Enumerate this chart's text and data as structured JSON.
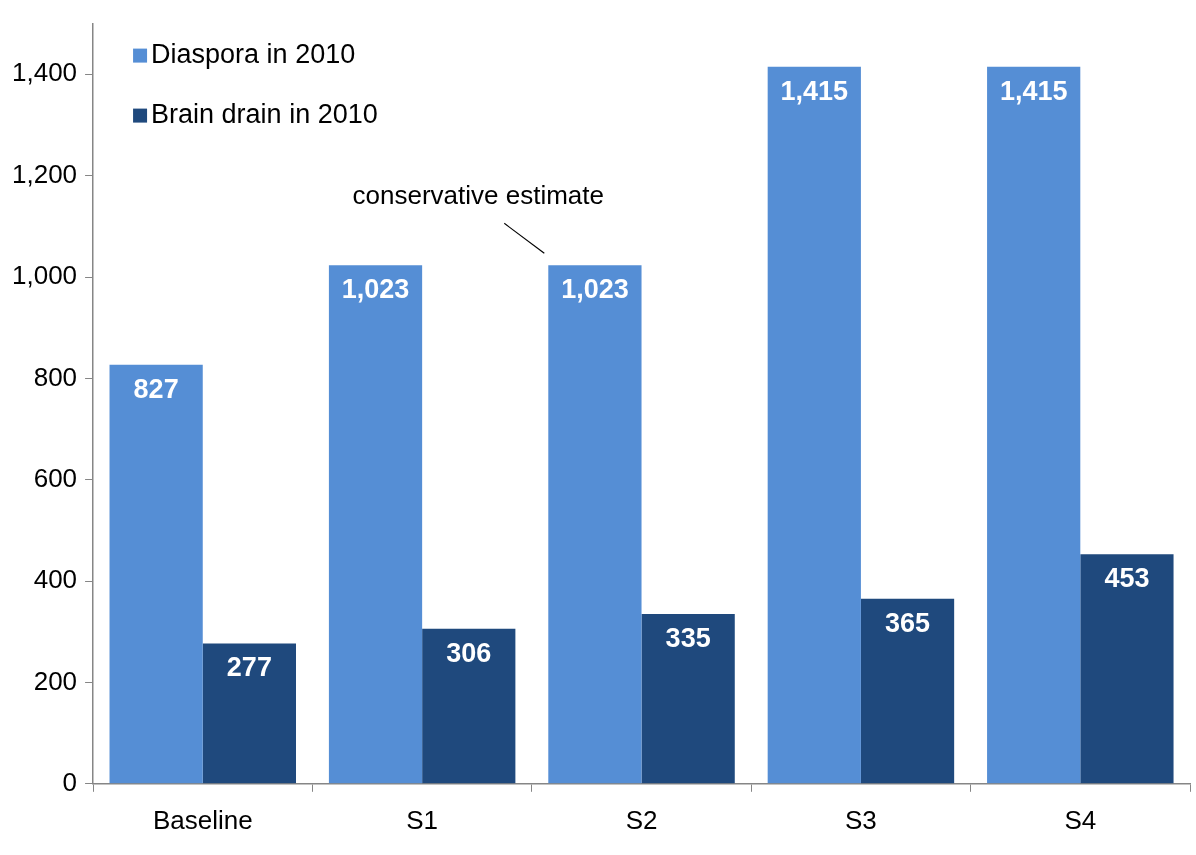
{
  "chart_data": {
    "type": "bar",
    "categories": [
      "Baseline",
      "S1",
      "S2",
      "S3",
      "S4"
    ],
    "series": [
      {
        "name": "Diaspora in 2010",
        "color": "#558ed5",
        "values": [
          827,
          1023,
          1023,
          1415,
          1415
        ],
        "value_labels": [
          "827",
          "1,023",
          "1,023",
          "1,415",
          "1,415"
        ]
      },
      {
        "name": "Brain drain in 2010",
        "color": "#1f497d",
        "values": [
          277,
          306,
          335,
          365,
          453
        ],
        "value_labels": [
          "277",
          "306",
          "335",
          "365",
          "453"
        ]
      }
    ],
    "ylim": [
      0,
      1500
    ],
    "yticks": [
      {
        "value": 0,
        "label": "0"
      },
      {
        "value": 200,
        "label": "200"
      },
      {
        "value": 400,
        "label": "400"
      },
      {
        "value": 600,
        "label": "600"
      },
      {
        "value": 800,
        "label": "800"
      },
      {
        "value": 1000,
        "label": "1,000"
      },
      {
        "value": 1200,
        "label": "1,200"
      },
      {
        "value": 1400,
        "label": "1,400"
      }
    ],
    "grid": false,
    "legend": "top left",
    "annotations": [
      {
        "text": "conservative estimate",
        "x": "S2",
        "y": 1023
      }
    ]
  }
}
